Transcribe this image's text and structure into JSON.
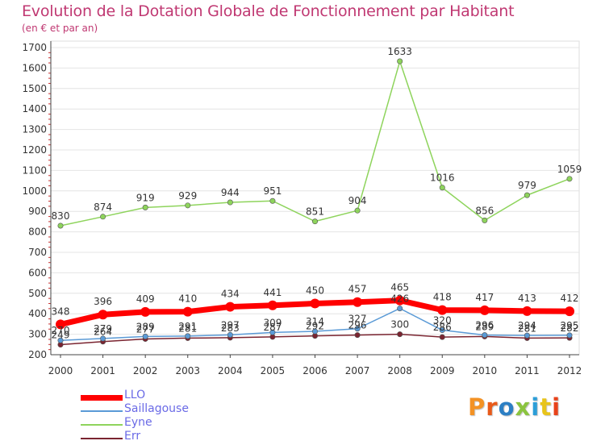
{
  "title": "Evolution de la Dotation Globale de Fonctionnement par Habitant",
  "subtitle": "(en € et par an)",
  "logo_text": "Proxiti",
  "logo_colors": [
    "#f39224",
    "#e85a1a",
    "#2c7fc4",
    "#8bc43f",
    "#2c9ed8",
    "#e8c41a",
    "#e8421a"
  ],
  "colors": {
    "title": "#c03872",
    "axis": "#333333",
    "grid": "#e4e4e4",
    "legend_text": "#6a6ae6"
  },
  "chart_data": {
    "type": "line",
    "title": "Evolution de la Dotation Globale de Fonctionnement par Habitant",
    "subtitle": "(en € et par an)",
    "xlabel": "",
    "ylabel": "",
    "ylim": [
      200,
      1700
    ],
    "yticks": [
      200,
      300,
      400,
      500,
      600,
      700,
      800,
      900,
      1000,
      1100,
      1200,
      1300,
      1400,
      1500,
      1600,
      1700
    ],
    "grid": true,
    "legend_position": "bottom-left",
    "x": [
      "2000",
      "2001",
      "2002",
      "2003",
      "2004",
      "2005",
      "2006",
      "2007",
      "2008",
      "2009",
      "2010",
      "2011",
      "2012"
    ],
    "series": [
      {
        "name": "LLO",
        "color": "#ff0000",
        "values": [
          348,
          396,
          409,
          410,
          434,
          441,
          450,
          457,
          465,
          418,
          417,
          413,
          412
        ]
      },
      {
        "name": "Saillagouse",
        "color": "#5a9ad6",
        "values": [
          270,
          279,
          289,
          291,
          297,
          309,
          314,
          327,
          426,
          320,
          296,
          294,
          295
        ]
      },
      {
        "name": "Eyne",
        "color": "#8ed45c",
        "values": [
          830,
          874,
          919,
          929,
          944,
          951,
          851,
          904,
          1633,
          1016,
          856,
          979,
          1059
        ]
      },
      {
        "name": "Err",
        "color": "#7a2430",
        "values": [
          249,
          264,
          277,
          281,
          283,
          287,
          292,
          296,
          300,
          286,
          289,
          281,
          282
        ]
      }
    ]
  }
}
